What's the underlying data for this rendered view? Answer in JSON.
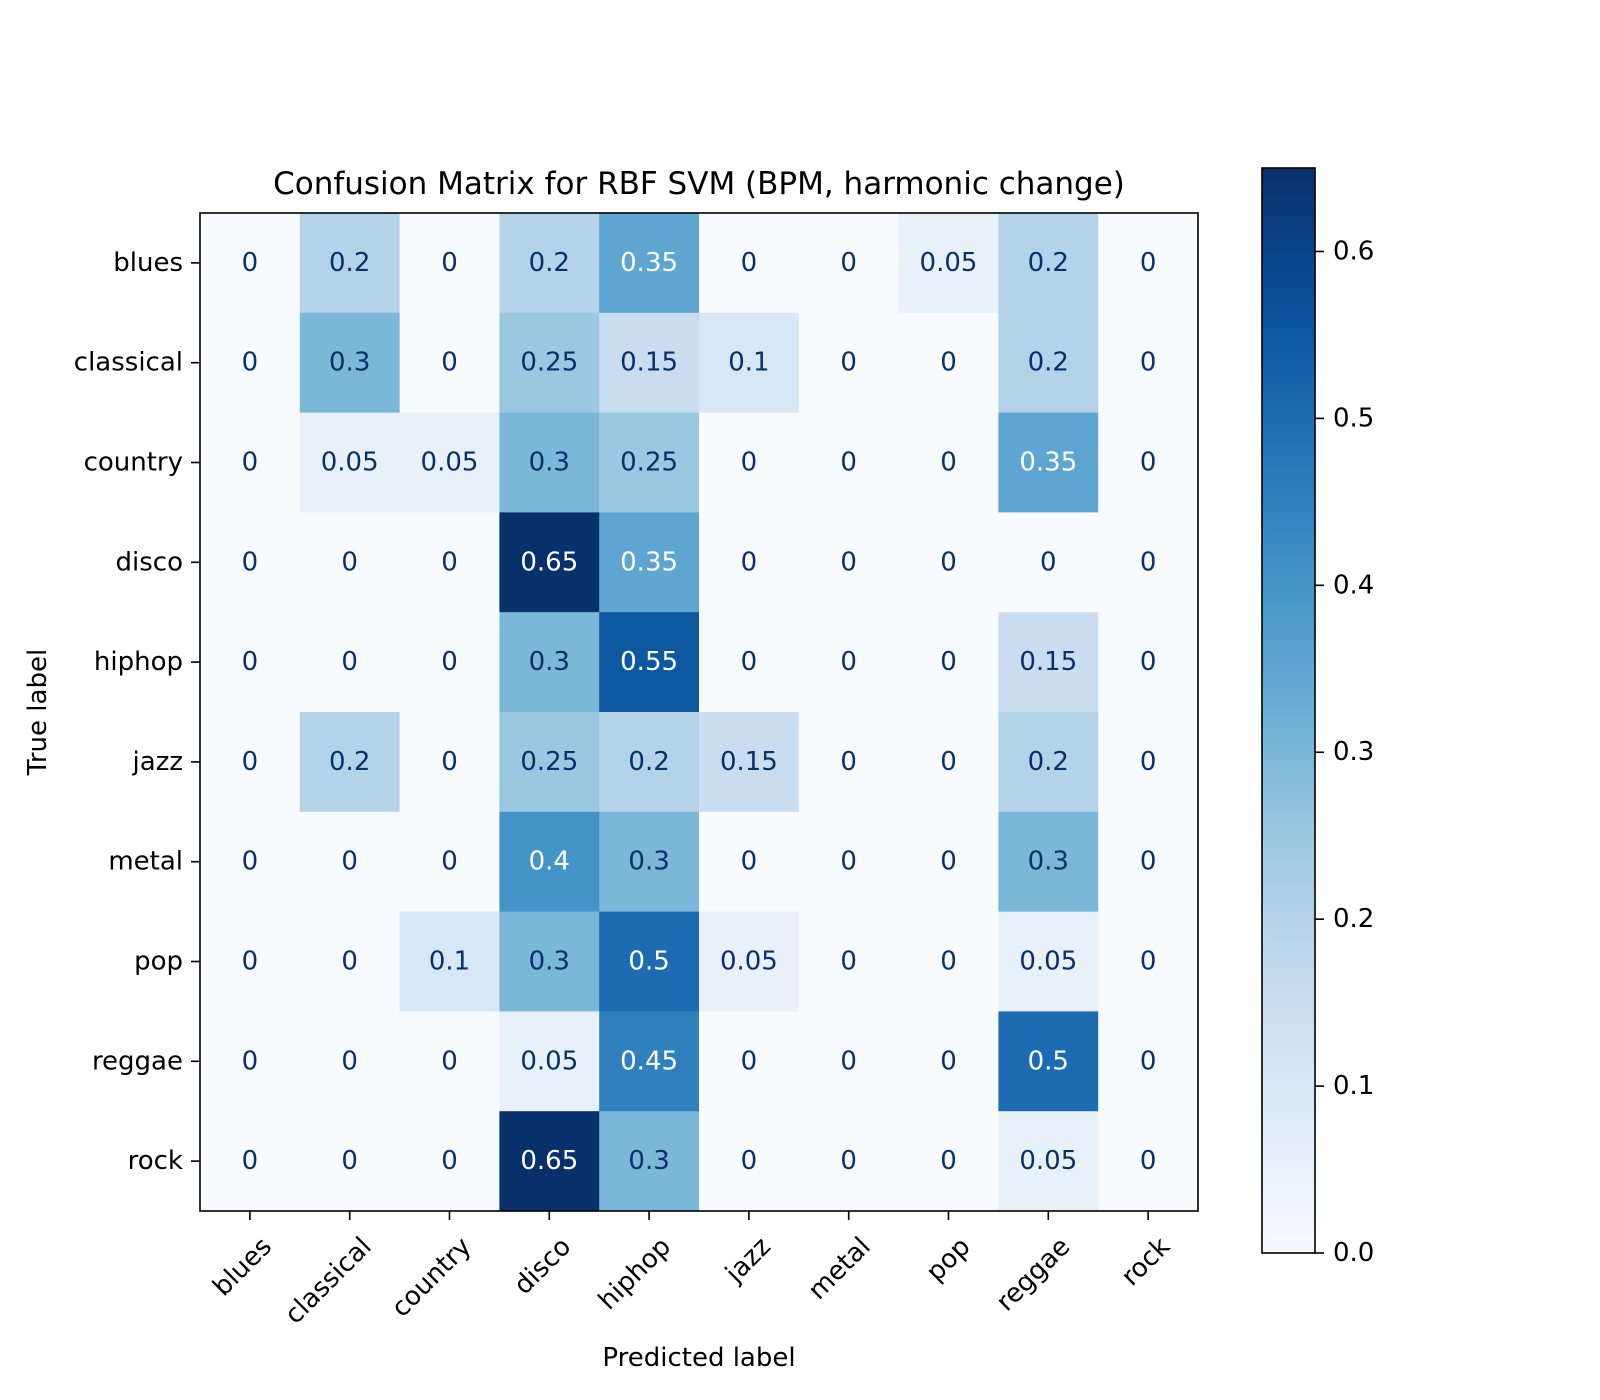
{
  "chart_data": {
    "type": "heatmap",
    "title": "Confusion Matrix for RBF SVM (BPM, harmonic change)",
    "xlabel": "Predicted label",
    "ylabel": "True label",
    "x_categories": [
      "blues",
      "classical",
      "country",
      "disco",
      "hiphop",
      "jazz",
      "metal",
      "pop",
      "reggae",
      "rock"
    ],
    "y_categories": [
      "blues",
      "classical",
      "country",
      "disco",
      "hiphop",
      "jazz",
      "metal",
      "pop",
      "reggae",
      "rock"
    ],
    "values": [
      [
        0,
        0.2,
        0,
        0.2,
        0.35,
        0,
        0,
        0.05,
        0.2,
        0
      ],
      [
        0,
        0.3,
        0,
        0.25,
        0.15,
        0.1,
        0,
        0,
        0.2,
        0
      ],
      [
        0,
        0.05,
        0.05,
        0.3,
        0.25,
        0,
        0,
        0,
        0.35,
        0
      ],
      [
        0,
        0,
        0,
        0.65,
        0.35,
        0,
        0,
        0,
        0,
        0
      ],
      [
        0,
        0,
        0,
        0.3,
        0.55,
        0,
        0,
        0,
        0.15,
        0
      ],
      [
        0,
        0.2,
        0,
        0.25,
        0.2,
        0.15,
        0,
        0,
        0.2,
        0
      ],
      [
        0,
        0,
        0,
        0.4,
        0.3,
        0,
        0,
        0,
        0.3,
        0
      ],
      [
        0,
        0,
        0.1,
        0.3,
        0.5,
        0.05,
        0,
        0,
        0.05,
        0
      ],
      [
        0,
        0,
        0,
        0.05,
        0.45,
        0,
        0,
        0,
        0.5,
        0
      ],
      [
        0,
        0,
        0,
        0.65,
        0.3,
        0,
        0,
        0,
        0.05,
        0
      ]
    ],
    "colormap": "Blues",
    "colorbar": {
      "range": [
        0,
        0.65
      ],
      "ticks": [
        0.0,
        0.1,
        0.2,
        0.3,
        0.4,
        0.5,
        0.6
      ],
      "tick_labels": [
        "0.0",
        "0.1",
        "0.2",
        "0.3",
        "0.4",
        "0.5",
        "0.6"
      ]
    },
    "grid": false,
    "text_colors": {
      "dark_cell": "#ffffff",
      "light_cell": "#08306b"
    }
  }
}
